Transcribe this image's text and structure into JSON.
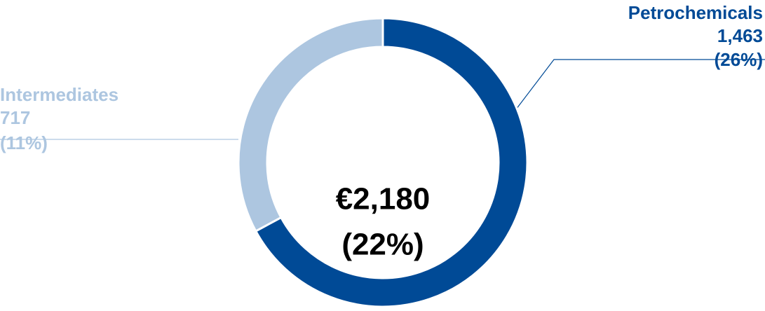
{
  "chart_data": {
    "type": "donut",
    "categories": [
      "Petrochemicals",
      "Intermediates"
    ],
    "values": [
      1463,
      717
    ],
    "value_labels": [
      "1,463",
      "717"
    ],
    "percent_labels": [
      "(26%)",
      "(11%)"
    ],
    "colors": [
      "#004a96",
      "#adc6e0"
    ],
    "center_label": "€2,180",
    "center_sublabel": "(22%)"
  }
}
